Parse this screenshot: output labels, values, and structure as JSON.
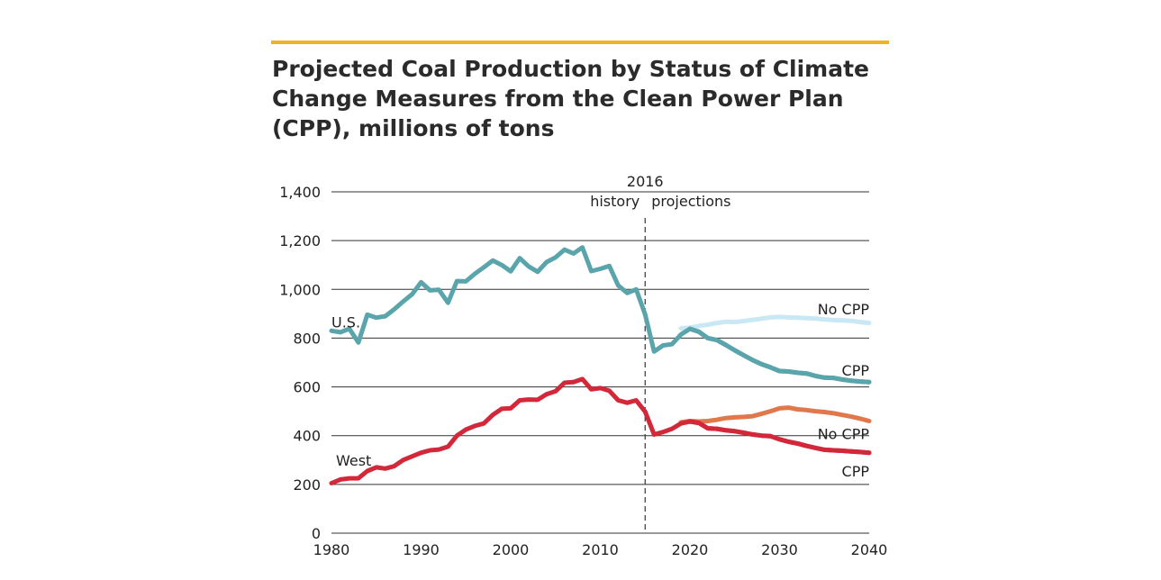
{
  "accent_color": "#f0b323",
  "chart_data": {
    "type": "line",
    "title": "Projected Coal Production by Status of Climate Change Measures from the Clean Power Plan (CPP), millions of tons",
    "xlim": [
      1980,
      2040
    ],
    "ylim": [
      0,
      1400
    ],
    "x_ticks": [
      1980,
      1990,
      2000,
      2010,
      2020,
      2030,
      2040
    ],
    "y_ticks": [
      0,
      200,
      400,
      600,
      800,
      1000,
      1200,
      1400
    ],
    "y_tick_labels": [
      "0",
      "200",
      "400",
      "600",
      "800",
      "1,000",
      "1,200",
      "1,400"
    ],
    "grid": "horizontal",
    "divider": {
      "x": 2015,
      "label": "2016",
      "left_label": "history",
      "right_label": "projections"
    },
    "series": [
      {
        "name": "U.S.",
        "color": "#5aa4ab",
        "points": [
          [
            1980,
            830
          ],
          [
            1981,
            824
          ],
          [
            1982,
            838
          ],
          [
            1983,
            782
          ],
          [
            1984,
            896
          ],
          [
            1985,
            884
          ],
          [
            1986,
            890
          ],
          [
            1987,
            918
          ],
          [
            1988,
            950
          ],
          [
            1989,
            980
          ],
          [
            1990,
            1029
          ],
          [
            1991,
            996
          ],
          [
            1992,
            998
          ],
          [
            1993,
            945
          ],
          [
            1994,
            1034
          ],
          [
            1995,
            1033
          ],
          [
            1996,
            1064
          ],
          [
            1997,
            1090
          ],
          [
            1998,
            1118
          ],
          [
            1999,
            1100
          ],
          [
            2000,
            1074
          ],
          [
            2001,
            1128
          ],
          [
            2002,
            1094
          ],
          [
            2003,
            1072
          ],
          [
            2004,
            1112
          ],
          [
            2005,
            1131
          ],
          [
            2006,
            1163
          ],
          [
            2007,
            1147
          ],
          [
            2008,
            1172
          ],
          [
            2009,
            1075
          ],
          [
            2010,
            1084
          ],
          [
            2011,
            1096
          ],
          [
            2012,
            1016
          ],
          [
            2013,
            985
          ],
          [
            2014,
            1000
          ],
          [
            2015,
            897
          ],
          [
            2016,
            745
          ],
          [
            2017,
            770
          ],
          [
            2018,
            775
          ],
          [
            2019,
            815
          ],
          [
            2020,
            838
          ],
          [
            2021,
            826
          ],
          [
            2022,
            800
          ],
          [
            2023,
            792
          ],
          [
            2024,
            772
          ],
          [
            2025,
            750
          ],
          [
            2026,
            730
          ],
          [
            2027,
            710
          ],
          [
            2028,
            693
          ],
          [
            2029,
            680
          ],
          [
            2030,
            665
          ],
          [
            2031,
            663
          ],
          [
            2032,
            658
          ],
          [
            2033,
            655
          ],
          [
            2034,
            645
          ],
          [
            2035,
            638
          ],
          [
            2036,
            637
          ],
          [
            2037,
            630
          ],
          [
            2038,
            625
          ],
          [
            2039,
            622
          ],
          [
            2040,
            620
          ]
        ]
      },
      {
        "name": "No CPP",
        "color": "#c8e8f5",
        "points": [
          [
            2019,
            840
          ],
          [
            2020,
            843
          ],
          [
            2021,
            850
          ],
          [
            2022,
            855
          ],
          [
            2023,
            862
          ],
          [
            2024,
            867
          ],
          [
            2025,
            866
          ],
          [
            2026,
            870
          ],
          [
            2027,
            875
          ],
          [
            2028,
            880
          ],
          [
            2029,
            885
          ],
          [
            2030,
            887
          ],
          [
            2031,
            885
          ],
          [
            2032,
            884
          ],
          [
            2033,
            882
          ],
          [
            2034,
            880
          ],
          [
            2035,
            877
          ],
          [
            2036,
            874
          ],
          [
            2037,
            873
          ],
          [
            2038,
            871
          ],
          [
            2039,
            866
          ],
          [
            2040,
            862
          ]
        ]
      },
      {
        "name": "CPP",
        "color": "#5aa4ab",
        "points": [
          [
            2020,
            838
          ],
          [
            2040,
            620
          ]
        ]
      },
      {
        "name": "West",
        "color": "#d3283a",
        "points": [
          [
            1980,
            205
          ],
          [
            1981,
            220
          ],
          [
            1982,
            225
          ],
          [
            1983,
            225
          ],
          [
            1984,
            255
          ],
          [
            1985,
            270
          ],
          [
            1986,
            265
          ],
          [
            1987,
            275
          ],
          [
            1988,
            300
          ],
          [
            1989,
            315
          ],
          [
            1990,
            330
          ],
          [
            1991,
            340
          ],
          [
            1992,
            343
          ],
          [
            1993,
            355
          ],
          [
            1994,
            400
          ],
          [
            1995,
            425
          ],
          [
            1996,
            440
          ],
          [
            1997,
            450
          ],
          [
            1998,
            485
          ],
          [
            1999,
            510
          ],
          [
            2000,
            512
          ],
          [
            2001,
            545
          ],
          [
            2002,
            548
          ],
          [
            2003,
            547
          ],
          [
            2004,
            570
          ],
          [
            2005,
            582
          ],
          [
            2006,
            617
          ],
          [
            2007,
            620
          ],
          [
            2008,
            632
          ],
          [
            2009,
            590
          ],
          [
            2010,
            595
          ],
          [
            2011,
            584
          ],
          [
            2012,
            545
          ],
          [
            2013,
            535
          ],
          [
            2014,
            545
          ],
          [
            2015,
            498
          ],
          [
            2016,
            405
          ],
          [
            2017,
            415
          ],
          [
            2018,
            428
          ],
          [
            2019,
            450
          ],
          [
            2020,
            458
          ],
          [
            2021,
            452
          ],
          [
            2022,
            430
          ],
          [
            2023,
            428
          ],
          [
            2024,
            422
          ],
          [
            2025,
            418
          ],
          [
            2026,
            412
          ],
          [
            2027,
            405
          ],
          [
            2028,
            400
          ],
          [
            2029,
            398
          ],
          [
            2030,
            385
          ],
          [
            2031,
            375
          ],
          [
            2032,
            368
          ],
          [
            2033,
            358
          ],
          [
            2034,
            350
          ],
          [
            2035,
            342
          ],
          [
            2036,
            340
          ],
          [
            2037,
            338
          ],
          [
            2038,
            335
          ],
          [
            2039,
            333
          ],
          [
            2040,
            330
          ]
        ]
      },
      {
        "name": "No CPP",
        "color": "#e0784c",
        "points": [
          [
            2019,
            455
          ],
          [
            2020,
            460
          ],
          [
            2021,
            458
          ],
          [
            2022,
            460
          ],
          [
            2023,
            465
          ],
          [
            2024,
            472
          ],
          [
            2025,
            475
          ],
          [
            2026,
            477
          ],
          [
            2027,
            480
          ],
          [
            2028,
            490
          ],
          [
            2029,
            500
          ],
          [
            2030,
            512
          ],
          [
            2031,
            515
          ],
          [
            2032,
            508
          ],
          [
            2033,
            505
          ],
          [
            2034,
            500
          ],
          [
            2035,
            497
          ],
          [
            2036,
            492
          ],
          [
            2037,
            485
          ],
          [
            2038,
            478
          ],
          [
            2039,
            470
          ],
          [
            2040,
            460
          ]
        ]
      },
      {
        "name": "CPP",
        "color": "#d3283a",
        "points": [
          [
            2020,
            458
          ],
          [
            2040,
            330
          ]
        ]
      }
    ],
    "annotations": [
      {
        "text": "U.S.",
        "x": 1980,
        "y": 866,
        "anchor": "start"
      },
      {
        "text": "No CPP",
        "x": 2040,
        "y": 920,
        "anchor": "end"
      },
      {
        "text": "CPP",
        "x": 2040,
        "y": 668,
        "anchor": "end"
      },
      {
        "text": "West",
        "x": 1980.5,
        "y": 300,
        "anchor": "start"
      },
      {
        "text": "No CPP",
        "x": 2040,
        "y": 408,
        "anchor": "end"
      },
      {
        "text": "CPP",
        "x": 2040,
        "y": 255,
        "anchor": "end"
      }
    ]
  }
}
